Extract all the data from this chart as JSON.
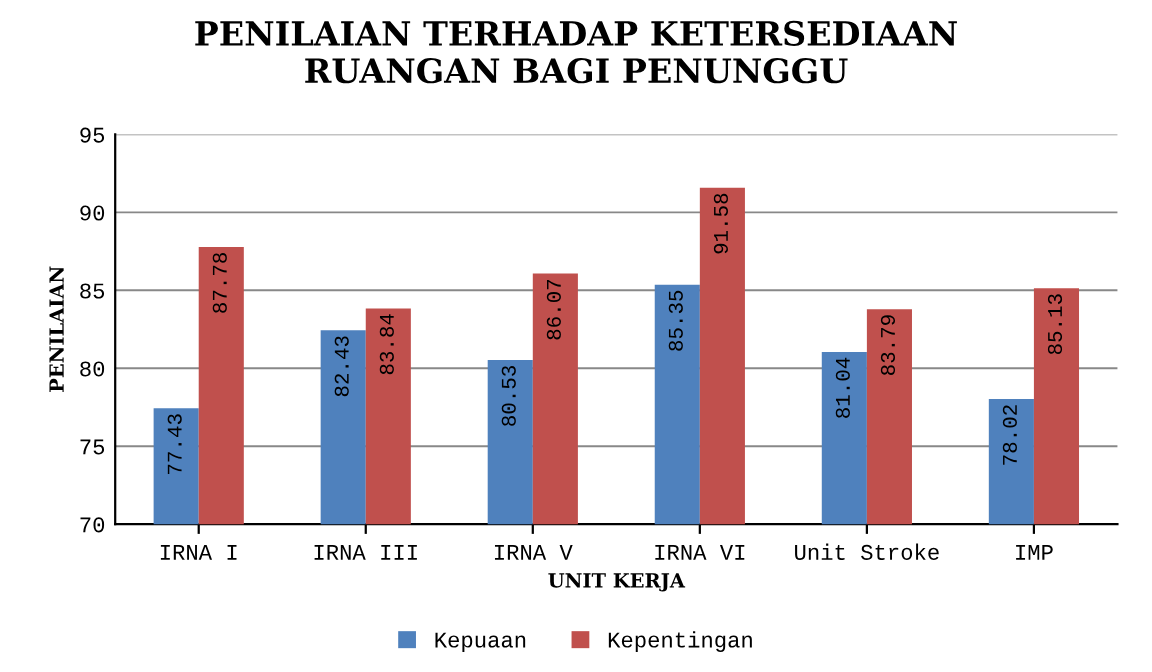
{
  "chart_data": {
    "type": "bar",
    "title": "PENILAIAN TERHADAP KETERSEDIAAN\nRUANGAN BAGI PENUNGGU",
    "xlabel": "UNIT KERJA",
    "ylabel": "PENILAIAN",
    "categories": [
      "IRNA I",
      "IRNA III",
      "IRNA V",
      "IRNA VI",
      "Unit Stroke",
      "IMP"
    ],
    "series": [
      {
        "name": "Kepuaan",
        "color": "#4f81bd",
        "values": [
          77.43,
          82.43,
          80.53,
          85.35,
          81.04,
          78.02
        ]
      },
      {
        "name": "Kepentingan",
        "color": "#c0504d",
        "values": [
          87.78,
          83.84,
          86.07,
          91.58,
          83.79,
          85.13
        ]
      }
    ],
    "ylim": [
      70,
      95
    ],
    "yticks": [
      70,
      75,
      80,
      85,
      90,
      95
    ],
    "grid": "y",
    "legend": "bottom",
    "data_labels": true
  }
}
